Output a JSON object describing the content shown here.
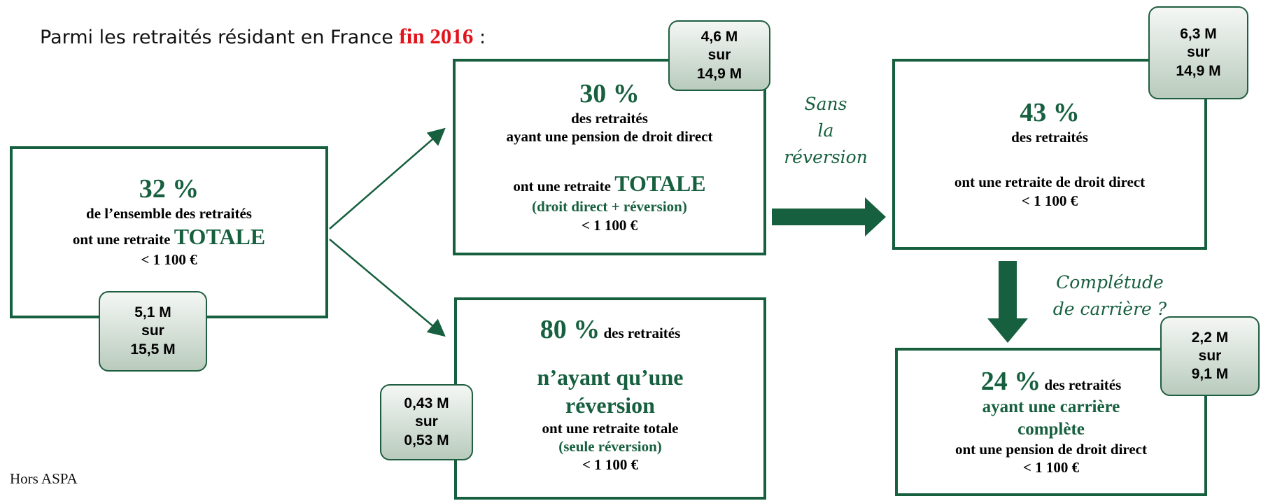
{
  "header": {
    "title": "Parmi les retraités résidant en France",
    "highlight": "fin 2016",
    "suffix": ":"
  },
  "box_total": {
    "percent": "32 %",
    "line1": "de l’ensemble des retraités",
    "line2": "ont une retraite",
    "emphasis": "TOTALE",
    "threshold": "< 1 100 €",
    "badge": [
      "5,1 M",
      "sur",
      "15,5 M"
    ]
  },
  "box_direct": {
    "percent": "30 %",
    "line1": "des retraités",
    "line2": "ayant une pension de droit direct",
    "line3": "ont une retraite",
    "emphasis": "TOTALE",
    "detail": "(droit direct + réversion)",
    "threshold": "< 1 100 €",
    "badge": [
      "4,6 M",
      "sur",
      "14,9 M"
    ]
  },
  "box_reversion": {
    "percent": "80 %",
    "line1": "des retraités",
    "emphasis1": "n’ayant qu’une",
    "emphasis2": "réversion",
    "line2": "ont une retraite totale",
    "detail": "(seule réversion)",
    "threshold": "< 1 100 €",
    "badge": [
      "0,43 M",
      "sur",
      "0,53 M"
    ]
  },
  "box_without": {
    "percent": "43 %",
    "line1": "des retraités",
    "line2": "ont une retraite de droit direct",
    "threshold": "< 1 100 €",
    "badge": [
      "6,3 M",
      "sur",
      "14,9 M"
    ]
  },
  "box_career": {
    "percent": "24 %",
    "line1": "des retraités",
    "emphasis1": "ayant une carrière",
    "emphasis2": "complète",
    "line2": "ont une pension de droit direct",
    "threshold": "< 1 100 €",
    "badge": [
      "2,2 M",
      "sur",
      "9,1 M"
    ]
  },
  "label_without": [
    "Sans",
    "la",
    "réversion"
  ],
  "label_career": [
    "Complétude",
    "de carrière ?"
  ],
  "footnote": "Hors ASPA"
}
